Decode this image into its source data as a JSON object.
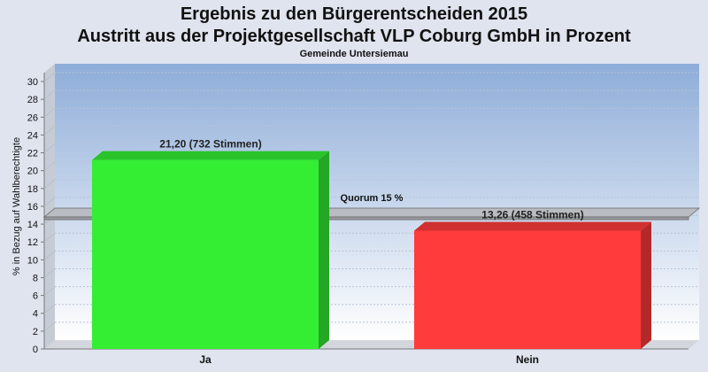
{
  "chart_data": {
    "type": "bar",
    "title_line1": "Ergebnis zu den Bürgerentscheiden 2015",
    "title_line2": "Austritt aus der Projektgesellschaft VLP Coburg GmbH in Prozent",
    "subtitle": "Gemeinde Untersiemau",
    "ylabel": "% in Bezug auf Wahlberechtigte",
    "xlabel": "",
    "categories": [
      "Ja",
      "Nein"
    ],
    "values": [
      21.2,
      13.26
    ],
    "data_labels": [
      "21,20 (732 Stimmen)",
      "13,26 (458 Stimmen)"
    ],
    "bar_colors": [
      "#33ee33",
      "#ff3b3b"
    ],
    "ylim": [
      0,
      30
    ],
    "yticks": [
      0,
      2,
      4,
      6,
      8,
      10,
      12,
      14,
      16,
      18,
      20,
      22,
      24,
      26,
      28,
      30
    ],
    "quorum": {
      "value": 15,
      "label": "Quorum 15 %"
    },
    "grid": true,
    "legend": "none"
  }
}
